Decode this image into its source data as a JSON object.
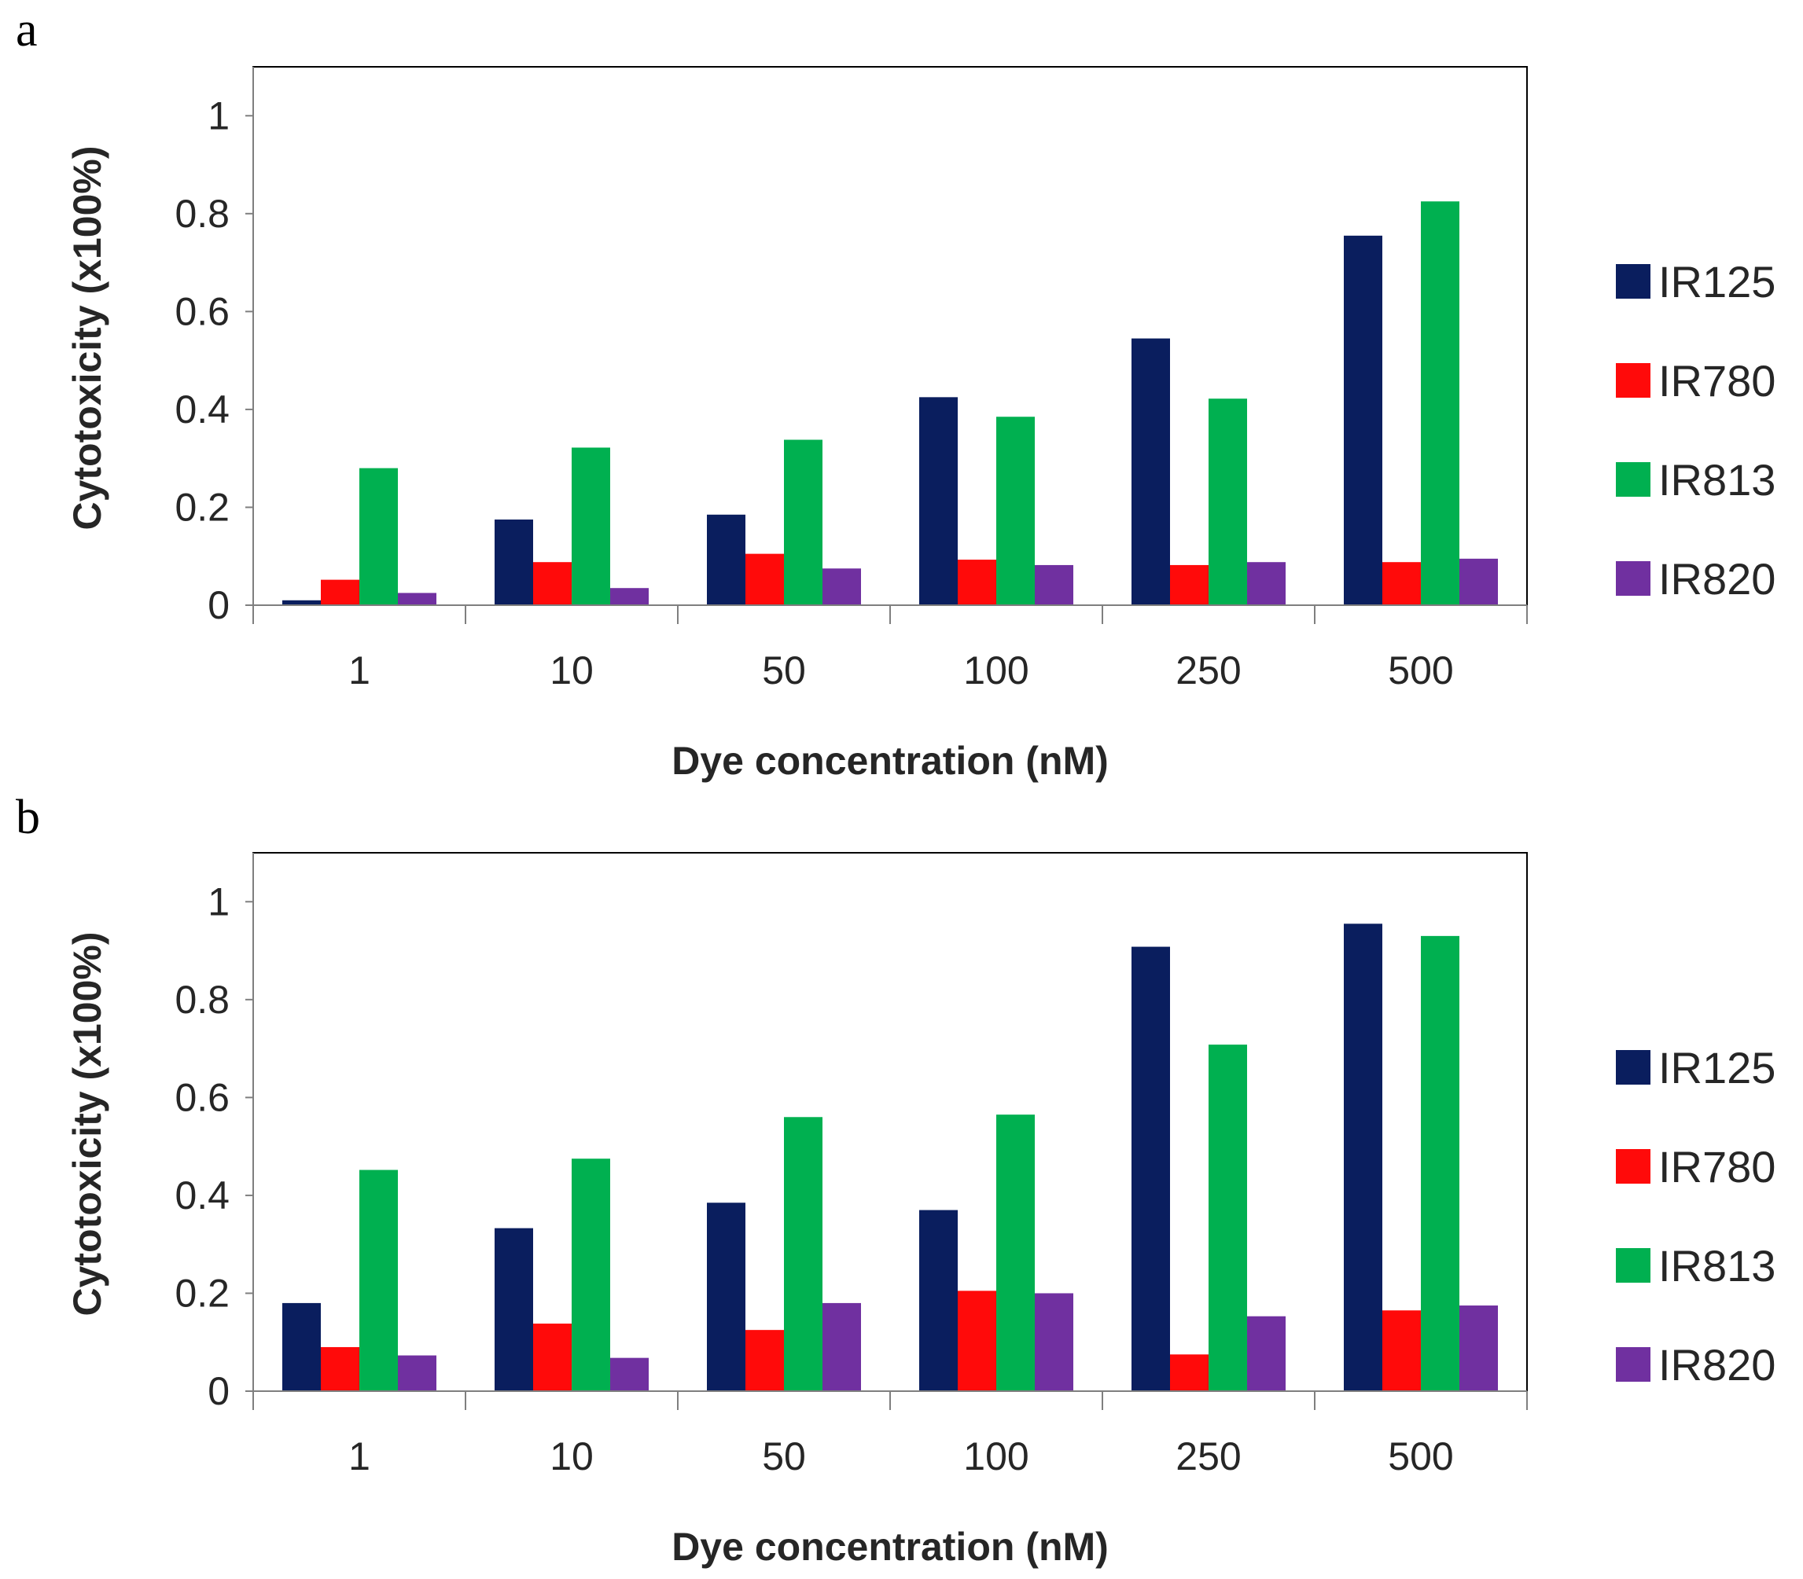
{
  "chart_data": [
    {
      "panel": "a",
      "type": "bar",
      "title": "",
      "xlabel": "Dye concentration (nM)",
      "ylabel": "Cytotoxicity (x100%)",
      "ylim": [
        0,
        1.1
      ],
      "yticks": [
        "0",
        "0.2",
        "0.4",
        "0.6",
        "0.8",
        "1"
      ],
      "grid": false,
      "legend_position": "right",
      "categories": [
        "1",
        "10",
        "50",
        "100",
        "250",
        "500"
      ],
      "series": [
        {
          "name": "IR125",
          "color": "#0a1e5e",
          "values": [
            0.01,
            0.175,
            0.185,
            0.425,
            0.545,
            0.755
          ]
        },
        {
          "name": "IR780",
          "color": "#ff0a0a",
          "values": [
            0.052,
            0.088,
            0.105,
            0.093,
            0.082,
            0.088
          ]
        },
        {
          "name": "IR813",
          "color": "#00b050",
          "values": [
            0.28,
            0.322,
            0.338,
            0.385,
            0.422,
            0.825
          ]
        },
        {
          "name": "IR820",
          "color": "#7030a0",
          "values": [
            0.025,
            0.035,
            0.075,
            0.082,
            0.088,
            0.095
          ]
        }
      ]
    },
    {
      "panel": "b",
      "type": "bar",
      "title": "",
      "xlabel": "Dye concentration (nM)",
      "ylabel": "Cytotoxicity (x100%)",
      "ylim": [
        0,
        1.1
      ],
      "yticks": [
        "0",
        "0.2",
        "0.4",
        "0.6",
        "0.8",
        "1"
      ],
      "grid": false,
      "legend_position": "right",
      "categories": [
        "1",
        "10",
        "50",
        "100",
        "250",
        "500"
      ],
      "series": [
        {
          "name": "IR125",
          "color": "#0a1e5e",
          "values": [
            0.18,
            0.333,
            0.385,
            0.37,
            0.908,
            0.955
          ]
        },
        {
          "name": "IR780",
          "color": "#ff0a0a",
          "values": [
            0.09,
            0.138,
            0.125,
            0.205,
            0.075,
            0.165
          ]
        },
        {
          "name": "IR813",
          "color": "#00b050",
          "values": [
            0.452,
            0.475,
            0.56,
            0.565,
            0.708,
            0.93
          ]
        },
        {
          "name": "IR820",
          "color": "#7030a0",
          "values": [
            0.073,
            0.068,
            0.18,
            0.2,
            0.153,
            0.175
          ]
        }
      ]
    }
  ]
}
